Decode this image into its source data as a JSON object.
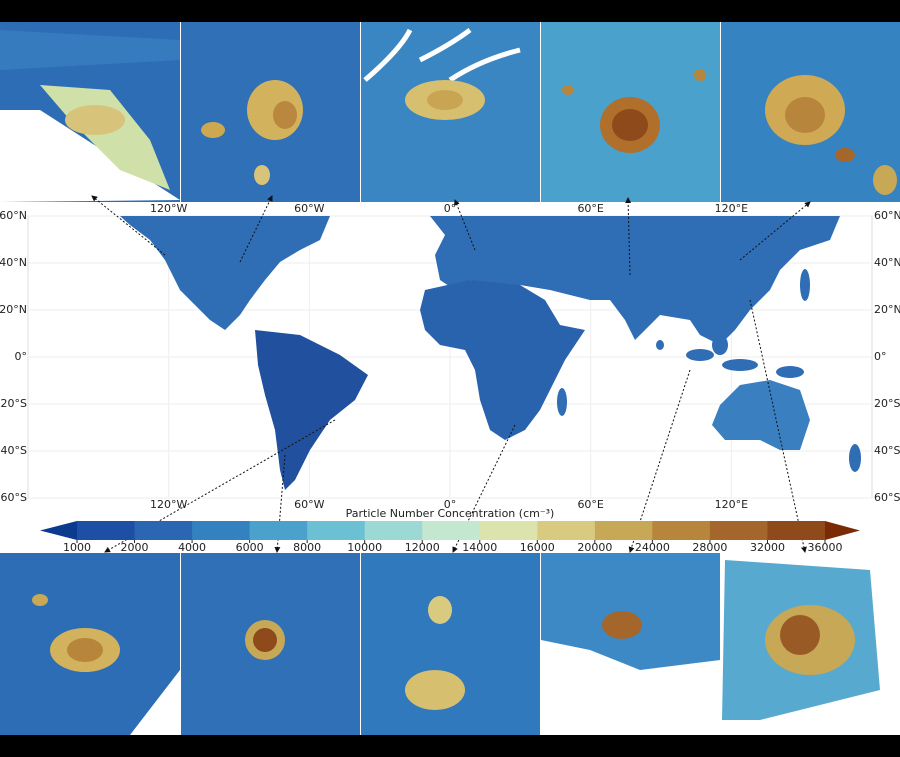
{
  "chart_data": {
    "type": "map",
    "xlim": [
      -180,
      180
    ],
    "ylim": [
      -60,
      60
    ],
    "xticks": [
      {
        "value": -120,
        "label": "120°W"
      },
      {
        "value": -60,
        "label": "60°W"
      },
      {
        "value": 0,
        "label": "0°"
      },
      {
        "value": 60,
        "label": "60°E"
      },
      {
        "value": 120,
        "label": "120°E"
      }
    ],
    "yticks": [
      {
        "value": 60,
        "label": "60°N"
      },
      {
        "value": 40,
        "label": "40°N"
      },
      {
        "value": 20,
        "label": "20°N"
      },
      {
        "value": 0,
        "label": "0°"
      },
      {
        "value": -20,
        "label": "20°S"
      },
      {
        "value": -40,
        "label": "40°S"
      },
      {
        "value": -60,
        "label": "60°S"
      }
    ],
    "grid": true,
    "colorbar": {
      "label": "Particle Number Concentration (cm⁻³)",
      "extend": "both",
      "ticks": [
        1000,
        2000,
        4000,
        6000,
        8000,
        10000,
        12000,
        14000,
        16000,
        20000,
        24000,
        28000,
        32000,
        36000
      ],
      "colors": [
        "#0b3a8e",
        "#1d4fa4",
        "#2a66b1",
        "#3481bf",
        "#4aa1cb",
        "#6cc0d3",
        "#9cd9d5",
        "#c4e8cf",
        "#dde3ad",
        "#d8cb80",
        "#c7a856",
        "#b7853b",
        "#a4662a",
        "#8f4a1b",
        "#7a2a05"
      ]
    }
  }
}
